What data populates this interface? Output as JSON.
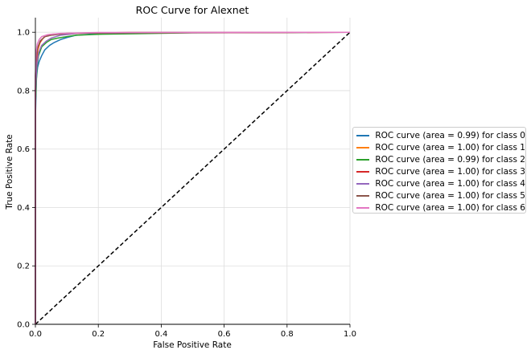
{
  "chart_data": {
    "type": "line",
    "title": "ROC Curve for Alexnet",
    "xlabel": "False Positive Rate",
    "ylabel": "True Positive Rate",
    "xlim": [
      0,
      1
    ],
    "ylim": [
      0,
      1.05
    ],
    "xticks": [
      "0.0",
      "0.2",
      "0.4",
      "0.6",
      "0.8",
      "1.0"
    ],
    "yticks": [
      "0.0",
      "0.2",
      "0.4",
      "0.6",
      "0.8",
      "1.0"
    ],
    "grid": true,
    "legend_position": "right",
    "series": [
      {
        "name": "ROC curve (area = 0.99) for class 0",
        "color": "#1f77b4",
        "x": [
          0,
          0,
          0.003,
          0.007,
          0.012,
          0.02,
          0.03,
          0.045,
          0.06,
          0.08,
          0.1,
          0.13,
          0.2,
          0.4,
          1.0
        ],
        "y": [
          0,
          0.7,
          0.84,
          0.88,
          0.9,
          0.92,
          0.94,
          0.955,
          0.965,
          0.975,
          0.982,
          0.99,
          0.995,
          0.998,
          1.0
        ]
      },
      {
        "name": "ROC curve (area = 1.00) for class 1",
        "color": "#ff7f0e",
        "x": [
          0,
          0,
          0.003,
          0.008,
          0.015,
          0.025,
          0.035,
          0.05,
          0.1,
          0.3,
          1.0
        ],
        "y": [
          0,
          0.8,
          0.9,
          0.94,
          0.965,
          0.98,
          0.99,
          0.993,
          0.996,
          0.999,
          1.0
        ]
      },
      {
        "name": "ROC curve (area = 0.99) for class 2",
        "color": "#2ca02c",
        "x": [
          0,
          0,
          0.005,
          0.01,
          0.02,
          0.035,
          0.05,
          0.07,
          0.1,
          0.13,
          0.2,
          0.32,
          0.5,
          1.0
        ],
        "y": [
          0,
          0.75,
          0.88,
          0.92,
          0.95,
          0.965,
          0.975,
          0.98,
          0.985,
          0.99,
          0.993,
          0.995,
          0.998,
          1.0
        ]
      },
      {
        "name": "ROC curve (area = 1.00) for class 3",
        "color": "#d62728",
        "x": [
          0,
          0,
          0.003,
          0.006,
          0.012,
          0.02,
          0.03,
          0.05,
          0.08,
          0.15,
          0.3,
          0.8,
          1.0
        ],
        "y": [
          0,
          0.8,
          0.9,
          0.94,
          0.96,
          0.975,
          0.985,
          0.99,
          0.995,
          0.997,
          0.998,
          0.999,
          1.0
        ]
      },
      {
        "name": "ROC curve (area = 1.00) for class 4",
        "color": "#9467bd",
        "x": [
          0,
          0,
          0.004,
          0.01,
          0.02,
          0.035,
          0.05,
          0.08,
          0.14,
          0.4,
          1.0
        ],
        "y": [
          0,
          0.78,
          0.88,
          0.93,
          0.955,
          0.97,
          0.98,
          0.99,
          0.997,
          0.999,
          1.0
        ]
      },
      {
        "name": "ROC curve (area = 1.00) for class 5",
        "color": "#8c564b",
        "x": [
          0,
          0,
          0.003,
          0.008,
          0.015,
          0.03,
          0.05,
          0.1,
          0.3,
          1.0
        ],
        "y": [
          0,
          0.85,
          0.92,
          0.95,
          0.97,
          0.985,
          0.99,
          0.996,
          0.999,
          1.0
        ]
      },
      {
        "name": "ROC curve (area = 1.00) for class 6",
        "color": "#e377c2",
        "x": [
          0,
          0,
          0.002,
          0.006,
          0.012,
          0.02,
          0.04,
          0.08,
          0.2,
          1.0
        ],
        "y": [
          0,
          0.85,
          0.93,
          0.96,
          0.975,
          0.985,
          0.992,
          0.996,
          0.999,
          1.0
        ]
      }
    ],
    "reference_line": {
      "x": [
        0,
        1
      ],
      "y": [
        0,
        1
      ],
      "color": "#000000",
      "style": "dashed"
    }
  }
}
